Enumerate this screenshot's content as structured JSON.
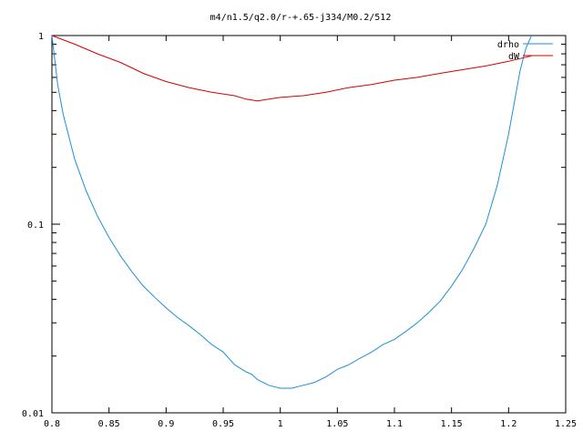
{
  "chart_data": {
    "type": "line",
    "title": "m4/n1.5/q2.0/r-+.65-j334/M0.2/512",
    "xlabel": "",
    "ylabel": "",
    "xlim": [
      0.8,
      1.25
    ],
    "ylim": [
      0.01,
      1
    ],
    "y_scale": "log",
    "grid": false,
    "legend_position": "top-right",
    "x_ticks": [
      {
        "value": 0.8,
        "label": "0.8"
      },
      {
        "value": 0.85,
        "label": "0.85"
      },
      {
        "value": 0.9,
        "label": "0.9"
      },
      {
        "value": 0.95,
        "label": "0.95"
      },
      {
        "value": 1.0,
        "label": "1"
      },
      {
        "value": 1.05,
        "label": "1.05"
      },
      {
        "value": 1.1,
        "label": "1.1"
      },
      {
        "value": 1.15,
        "label": "1.15"
      },
      {
        "value": 1.2,
        "label": "1.2"
      },
      {
        "value": 1.25,
        "label": "1.25"
      }
    ],
    "y_ticks": [
      {
        "value": 0.01,
        "label": "0.01"
      },
      {
        "value": 0.1,
        "label": "0.1"
      },
      {
        "value": 1,
        "label": "1"
      }
    ],
    "series": [
      {
        "name": "drho",
        "color": "#1f8fd6",
        "x": [
          0.8,
          0.805,
          0.81,
          0.82,
          0.83,
          0.84,
          0.85,
          0.86,
          0.87,
          0.88,
          0.89,
          0.9,
          0.91,
          0.92,
          0.93,
          0.94,
          0.95,
          0.96,
          0.97,
          0.975,
          0.98,
          0.985,
          0.99,
          1.0,
          1.01,
          1.02,
          1.03,
          1.04,
          1.05,
          1.06,
          1.07,
          1.08,
          1.09,
          1.1,
          1.11,
          1.12,
          1.13,
          1.14,
          1.15,
          1.16,
          1.17,
          1.18,
          1.19,
          1.2,
          1.21,
          1.215,
          1.22
        ],
        "y": [
          1.0,
          0.55,
          0.38,
          0.22,
          0.15,
          0.11,
          0.085,
          0.068,
          0.056,
          0.047,
          0.041,
          0.036,
          0.032,
          0.029,
          0.026,
          0.023,
          0.021,
          0.018,
          0.0165,
          0.016,
          0.015,
          0.0145,
          0.014,
          0.0135,
          0.0135,
          0.014,
          0.0145,
          0.0155,
          0.017,
          0.018,
          0.0195,
          0.021,
          0.023,
          0.0245,
          0.027,
          0.03,
          0.034,
          0.039,
          0.047,
          0.058,
          0.075,
          0.1,
          0.16,
          0.3,
          0.65,
          0.85,
          1.0
        ]
      },
      {
        "name": "dW",
        "color": "#d40000",
        "x": [
          0.8,
          0.82,
          0.84,
          0.86,
          0.88,
          0.9,
          0.92,
          0.94,
          0.96,
          0.97,
          0.98,
          0.99,
          1.0,
          1.02,
          1.04,
          1.06,
          1.08,
          1.1,
          1.12,
          1.14,
          1.16,
          1.18,
          1.2,
          1.22
        ],
        "y": [
          1.0,
          0.9,
          0.8,
          0.72,
          0.63,
          0.57,
          0.53,
          0.5,
          0.48,
          0.46,
          0.45,
          0.46,
          0.47,
          0.48,
          0.5,
          0.53,
          0.55,
          0.58,
          0.6,
          0.63,
          0.66,
          0.69,
          0.73,
          0.78
        ]
      }
    ]
  }
}
